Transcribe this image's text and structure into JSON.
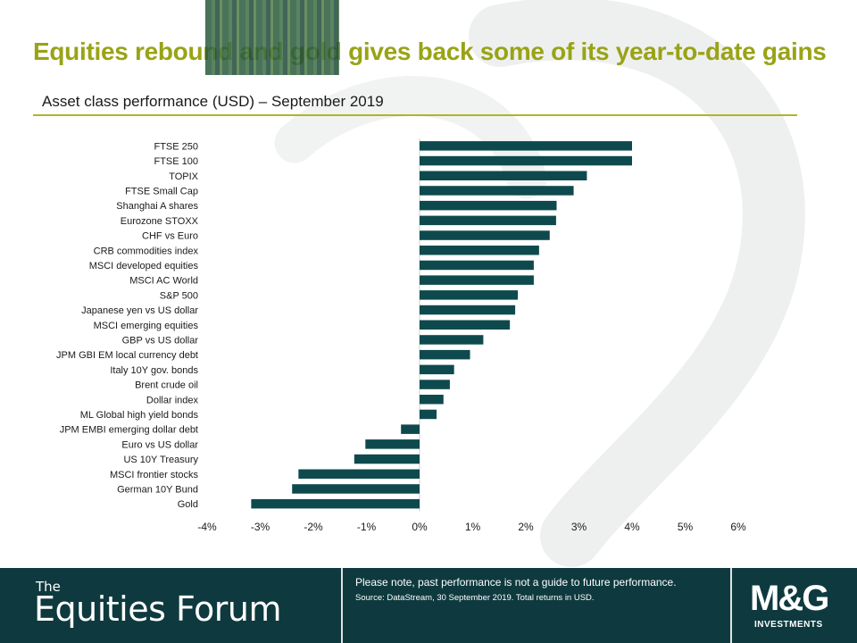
{
  "header": {
    "title": "Equities rebound and gold gives back some of its year-to-date gains",
    "subtitle": "Asset class performance (USD) – September 2019"
  },
  "chart_data": {
    "type": "bar",
    "orientation": "horizontal",
    "title": "",
    "xlabel": "",
    "ylabel": "",
    "categories": [
      "FTSE 250",
      "FTSE 100",
      "TOPIX",
      "FTSE Small Cap",
      "Shanghai A shares",
      "Eurozone STOXX",
      "CHF vs Euro",
      "CRB commodities index",
      "MSCI developed equities",
      "MSCI AC World",
      "S&P 500",
      "Japanese yen vs US dollar",
      "MSCI emerging equities",
      "GBP vs US dollar",
      "JPM GBI EM local currency debt",
      "Italy 10Y gov. bonds",
      "Brent crude oil",
      "Dollar index",
      "ML Global high yield bonds",
      "JPM EMBI emerging dollar debt",
      "Euro vs US dollar",
      "US 10Y Treasury",
      "MSCI frontier stocks",
      "German 10Y Bund",
      "Gold"
    ],
    "values": [
      4.0,
      4.0,
      3.15,
      2.9,
      2.58,
      2.57,
      2.45,
      2.25,
      2.15,
      2.15,
      1.85,
      1.8,
      1.7,
      1.2,
      0.95,
      0.65,
      0.57,
      0.45,
      0.32,
      -0.35,
      -1.02,
      -1.23,
      -2.28,
      -2.4,
      -3.17
    ],
    "xlim": [
      -4,
      6
    ],
    "xticks": [
      "-4%",
      "-3%",
      "-2%",
      "-1%",
      "0%",
      "1%",
      "2%",
      "3%",
      "4%",
      "5%",
      "6%"
    ],
    "grid": false,
    "legend": "none",
    "bar_color": "#0e4a4d"
  },
  "footer": {
    "brand_the": "The",
    "brand_main": "Equities Forum",
    "disclaimer": "Please note, past performance is not a guide to future performance.",
    "source": "Source: DataStream, 30 September 2019. Total returns in USD.",
    "logo_main": "M&G",
    "logo_sub": "INVESTMENTS"
  }
}
